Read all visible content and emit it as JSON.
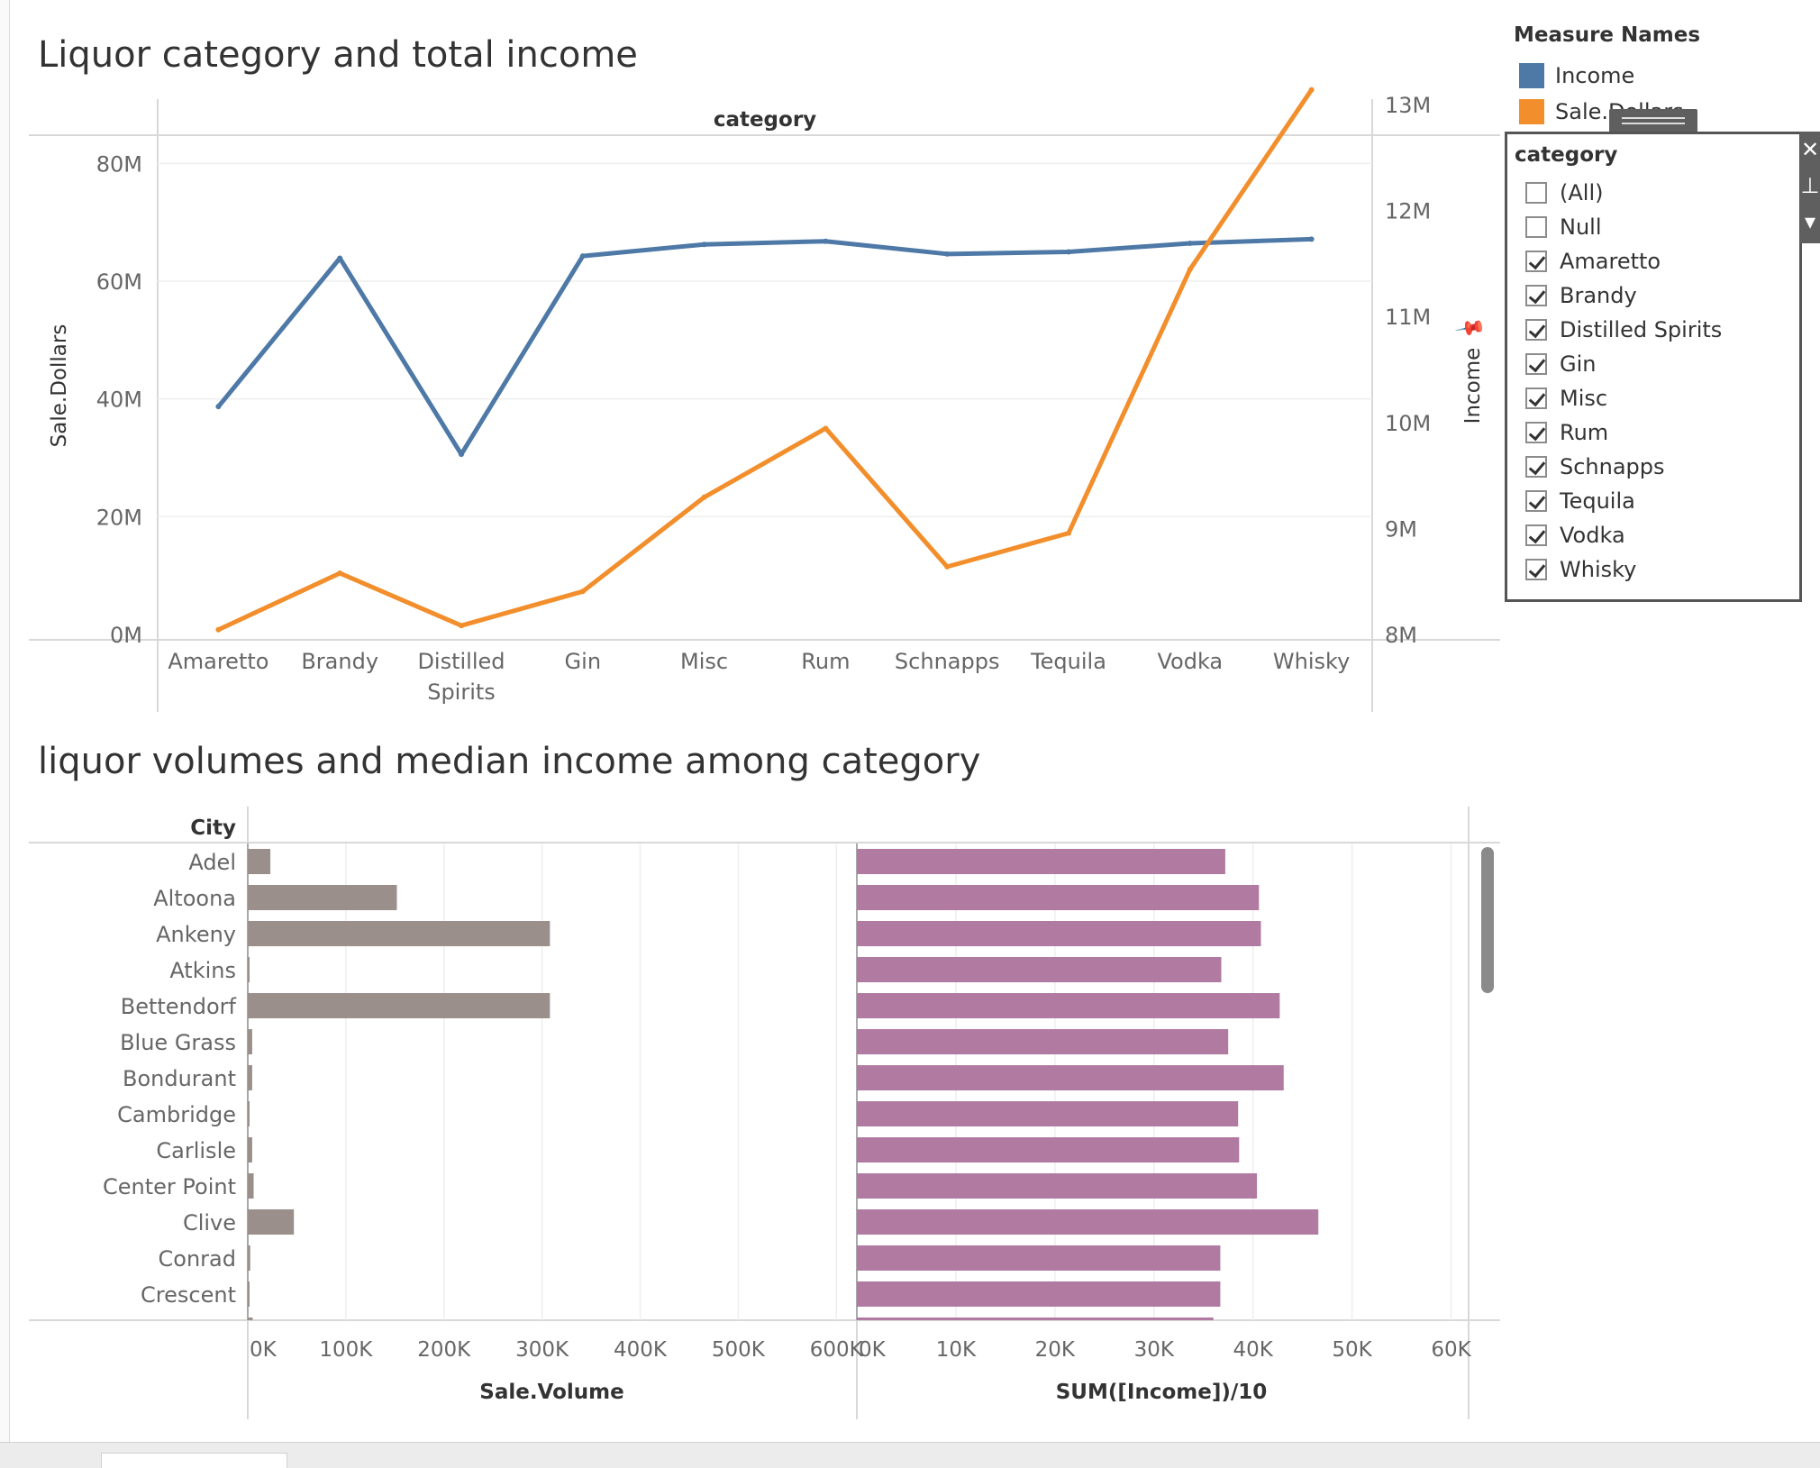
{
  "titles": {
    "chart1": "Liquor category and total income",
    "chart2": "liquor volumes and median income among category"
  },
  "legend": {
    "title": "Measure Names",
    "items": [
      {
        "label": "Income",
        "color": "#4e79a7"
      },
      {
        "label": "Sale.Dollars",
        "color": "#f28e2b"
      }
    ]
  },
  "filter": {
    "title": "category",
    "items": [
      {
        "label": "(All)",
        "checked": false
      },
      {
        "label": "Null",
        "checked": false
      },
      {
        "label": "Amaretto",
        "checked": true
      },
      {
        "label": "Brandy",
        "checked": true
      },
      {
        "label": "Distilled Spirits",
        "checked": true
      },
      {
        "label": "Gin",
        "checked": true
      },
      {
        "label": "Misc",
        "checked": true
      },
      {
        "label": "Rum",
        "checked": true
      },
      {
        "label": "Schnapps",
        "checked": true
      },
      {
        "label": "Tequila",
        "checked": true
      },
      {
        "label": "Vodka",
        "checked": true
      },
      {
        "label": "Whisky",
        "checked": true
      }
    ],
    "tools": {
      "close": "✕",
      "pin": "⊥",
      "menu": "▾"
    }
  },
  "chart_data": [
    {
      "type": "line",
      "title": "Liquor category and total income",
      "column_header": "category",
      "categories": [
        "Amaretto",
        "Brandy",
        "Distilled Spirits",
        "Gin",
        "Misc",
        "Rum",
        "Schnapps",
        "Tequila",
        "Vodka",
        "Whisky"
      ],
      "category_labels": [
        [
          "Amaretto"
        ],
        [
          "Brandy"
        ],
        [
          "Distilled",
          "Spirits"
        ],
        [
          "Gin"
        ],
        [
          "Misc"
        ],
        [
          "Rum"
        ],
        [
          "Schnapps"
        ],
        [
          "Tequila"
        ],
        [
          "Vodka"
        ],
        [
          "Whisky"
        ]
      ],
      "ylabel": "Sale.Dollars",
      "ylim": [
        0,
        90000000
      ],
      "y_ticks": [
        0,
        20000000,
        40000000,
        60000000,
        80000000
      ],
      "y_tick_labels": [
        "0M",
        "20M",
        "40M",
        "60M",
        "80M"
      ],
      "y2label": "Income",
      "y2lim": [
        8000000,
        13000000
      ],
      "y2_ticks": [
        8000000,
        9000000,
        10000000,
        11000000,
        12000000,
        13000000
      ],
      "y2_tick_labels": [
        "8M",
        "9M",
        "10M",
        "11M",
        "12M",
        "13M"
      ],
      "series": [
        {
          "name": "Income",
          "axis": "right",
          "color": "#4e79a7",
          "values": [
            10150000,
            11550000,
            9700000,
            11570000,
            11680000,
            11710000,
            11590000,
            11610000,
            11690000,
            11730000
          ]
        },
        {
          "name": "Sale.Dollars",
          "axis": "left",
          "color": "#f28e2b",
          "values": [
            800000,
            10400000,
            1500000,
            7300000,
            23300000,
            35000000,
            11500000,
            17200000,
            62000000,
            92500000
          ]
        }
      ],
      "grid": true
    },
    {
      "type": "bar",
      "orientation": "horizontal",
      "title": "liquor volumes and median income among category",
      "row_header": "City",
      "categories": [
        "Adel",
        "Altoona",
        "Ankeny",
        "Atkins",
        "Bettendorf",
        "Blue Grass",
        "Bondurant",
        "Cambridge",
        "Carlisle",
        "Center Point",
        "Clive",
        "Conrad",
        "Crescent"
      ],
      "panels": [
        {
          "measure": "Sale.Volume",
          "color": "#9b8f8c",
          "xlim": [
            0,
            620000
          ],
          "x_ticks": [
            0,
            100000,
            200000,
            300000,
            400000,
            500000,
            600000
          ],
          "x_tick_labels": [
            "0K",
            "100K",
            "200K",
            "300K",
            "400K",
            "500K",
            "600K"
          ],
          "values": [
            23000,
            152000,
            308000,
            1000,
            308000,
            4500,
            4500,
            1500,
            4500,
            6000,
            47000,
            2500,
            1500
          ]
        },
        {
          "measure": "SUM([Income])/10",
          "color": "#b07aa1",
          "xlim": [
            0,
            61500
          ],
          "x_ticks": [
            0,
            10000,
            20000,
            30000,
            40000,
            50000,
            60000
          ],
          "x_tick_labels": [
            "0K",
            "10K",
            "20K",
            "30K",
            "40K",
            "50K",
            "60K"
          ],
          "values": [
            37200,
            40600,
            40800,
            36800,
            42700,
            37500,
            43100,
            38500,
            38600,
            40400,
            46600,
            36700,
            36700
          ]
        }
      ],
      "grid": true
    }
  ]
}
